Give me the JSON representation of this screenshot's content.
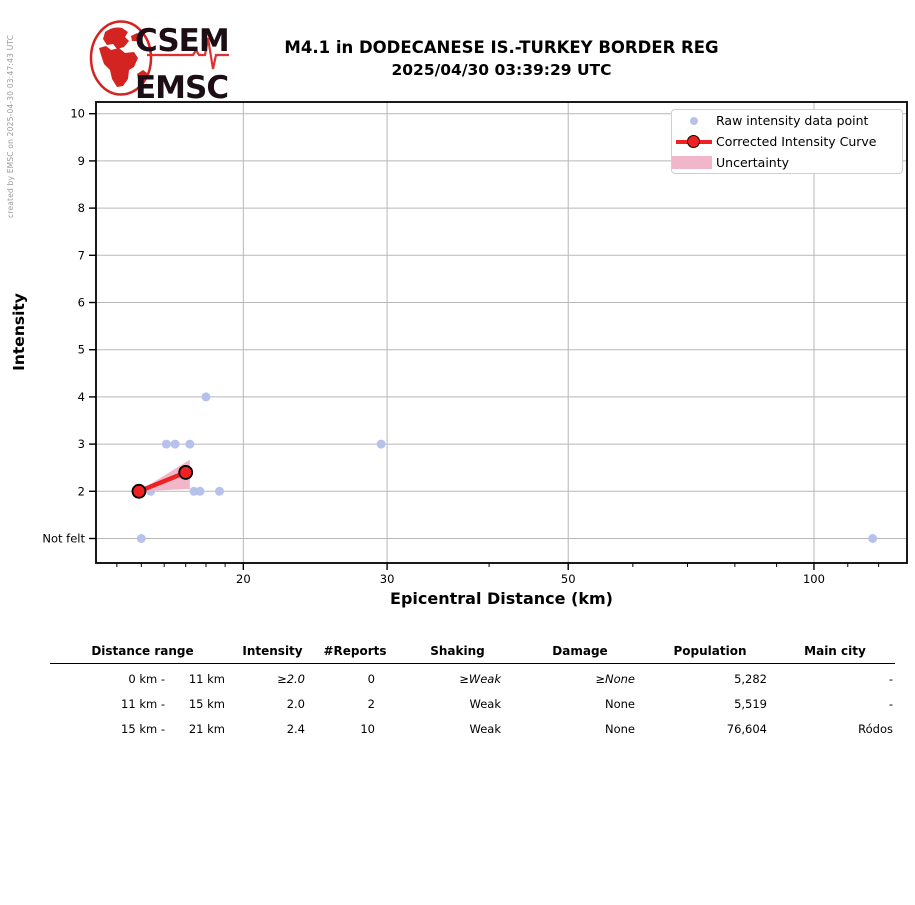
{
  "header": {
    "logo_top": "CSEM",
    "logo_bottom": "EMSC",
    "title_line1": "M4.1 in DODECANESE IS.-TURKEY BORDER REG",
    "title_line2": "2025/04/30 03:39:29 UTC",
    "credit": "created by EMSC on 2025-04-30 03:47:43 UTC"
  },
  "chart_data": {
    "type": "scatter",
    "xlabel": "Epicentral Distance (km)",
    "ylabel": "Intensity",
    "x_scale": "log",
    "xlim": [
      13.2,
      130
    ],
    "ylim": [
      1,
      10
    ],
    "grid": true,
    "x_major_ticks": [
      20,
      30,
      50,
      100
    ],
    "x_minor_ticks": [
      14,
      15,
      16,
      17,
      18,
      19,
      40,
      60,
      70,
      80,
      90,
      110,
      120
    ],
    "y_ticks": [
      {
        "value": 1,
        "label": "Not felt"
      },
      {
        "value": 2,
        "label": "2"
      },
      {
        "value": 3,
        "label": "3"
      },
      {
        "value": 4,
        "label": "4"
      },
      {
        "value": 5,
        "label": "5"
      },
      {
        "value": 6,
        "label": "6"
      },
      {
        "value": 7,
        "label": "7"
      },
      {
        "value": 8,
        "label": "8"
      },
      {
        "value": 9,
        "label": "9"
      },
      {
        "value": 10,
        "label": "10"
      }
    ],
    "legend_position": "upper right",
    "series": [
      {
        "name": "Raw intensity data point",
        "type": "scatter",
        "color": "#b7c2ec",
        "points": [
          [
            18,
            4
          ],
          [
            16.1,
            3
          ],
          [
            16.5,
            3
          ],
          [
            17.2,
            3
          ],
          [
            29.5,
            3
          ],
          [
            15.4,
            2
          ],
          [
            17.4,
            2
          ],
          [
            17.7,
            2
          ],
          [
            18.7,
            2
          ],
          [
            15.0,
            1
          ],
          [
            118,
            1
          ]
        ]
      },
      {
        "name": "Corrected Intensity Curve",
        "type": "line",
        "color": "#ee2222",
        "marker_edge": "#000000",
        "points": [
          [
            14.9,
            2.0
          ],
          [
            17.0,
            2.4
          ]
        ]
      },
      {
        "name": "Uncertainty",
        "type": "band",
        "color": "#f2b6cb",
        "polygon": [
          [
            14.9,
            2.0
          ],
          [
            17.2,
            2.67
          ],
          [
            17.2,
            2.05
          ]
        ]
      }
    ],
    "colors": {
      "grid": "#b8b8b8",
      "frame": "#000000"
    }
  },
  "legend": {
    "raw": "Raw intensity data point",
    "curve": "Corrected Intensity Curve",
    "band": "Uncertainty"
  },
  "table": {
    "headers": [
      "Distance range",
      "Intensity",
      "#Reports",
      "Shaking",
      "Damage",
      "Population",
      "Main city"
    ],
    "rows": [
      {
        "range_from": "0 km -",
        "range_to": "11 km",
        "intensity": "≥2.0",
        "reports": "0",
        "shaking": "≥Weak",
        "damage": "≥None",
        "population": "5,282",
        "main_city": "-"
      },
      {
        "range_from": "11 km -",
        "range_to": "15 km",
        "intensity": "2.0",
        "reports": "2",
        "shaking": "Weak",
        "damage": "None",
        "population": "5,519",
        "main_city": "-"
      },
      {
        "range_from": "15 km -",
        "range_to": "21 km",
        "intensity": "2.4",
        "reports": "10",
        "shaking": "Weak",
        "damage": "None",
        "population": "76,604",
        "main_city": "Ródos"
      }
    ]
  }
}
